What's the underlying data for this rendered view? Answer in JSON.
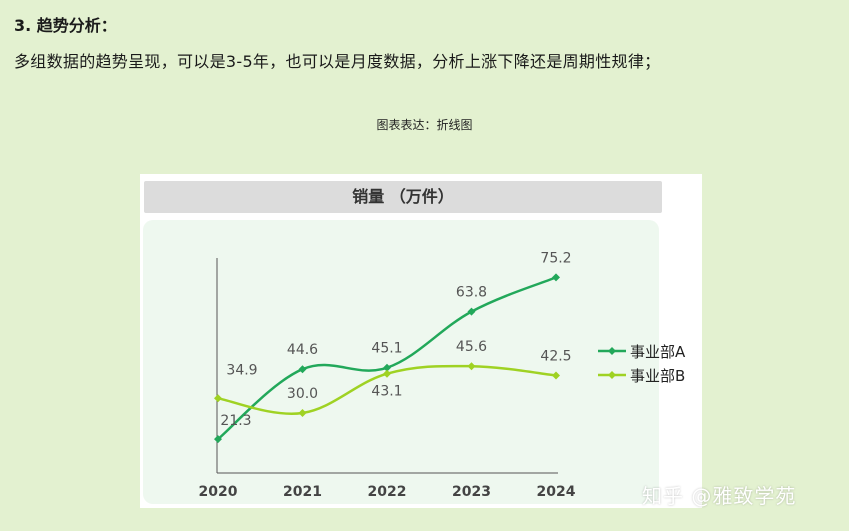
{
  "heading": "3. 趋势分析：",
  "description": "多组数据的趋势呈现，可以是3-5年，也可以是月度数据，分析上涨下降还是周期性规律；",
  "caption": "图表表达：折线图",
  "watermark": "知乎 @雅致学苑",
  "chart_data": {
    "type": "line",
    "title": "销量 （万件）",
    "categories": [
      "2020",
      "2021",
      "2022",
      "2023",
      "2024"
    ],
    "series": [
      {
        "name": "事业部A",
        "values": [
          21.3,
          44.6,
          45.1,
          63.8,
          75.2
        ],
        "color": "#22a85a"
      },
      {
        "name": "事业部B",
        "values": [
          34.9,
          30.0,
          43.1,
          45.6,
          42.5
        ],
        "color": "#9fd223"
      }
    ],
    "xlabel": "",
    "ylabel": "",
    "ylim": [
      10,
      85
    ],
    "grid": false,
    "legend": "right"
  }
}
